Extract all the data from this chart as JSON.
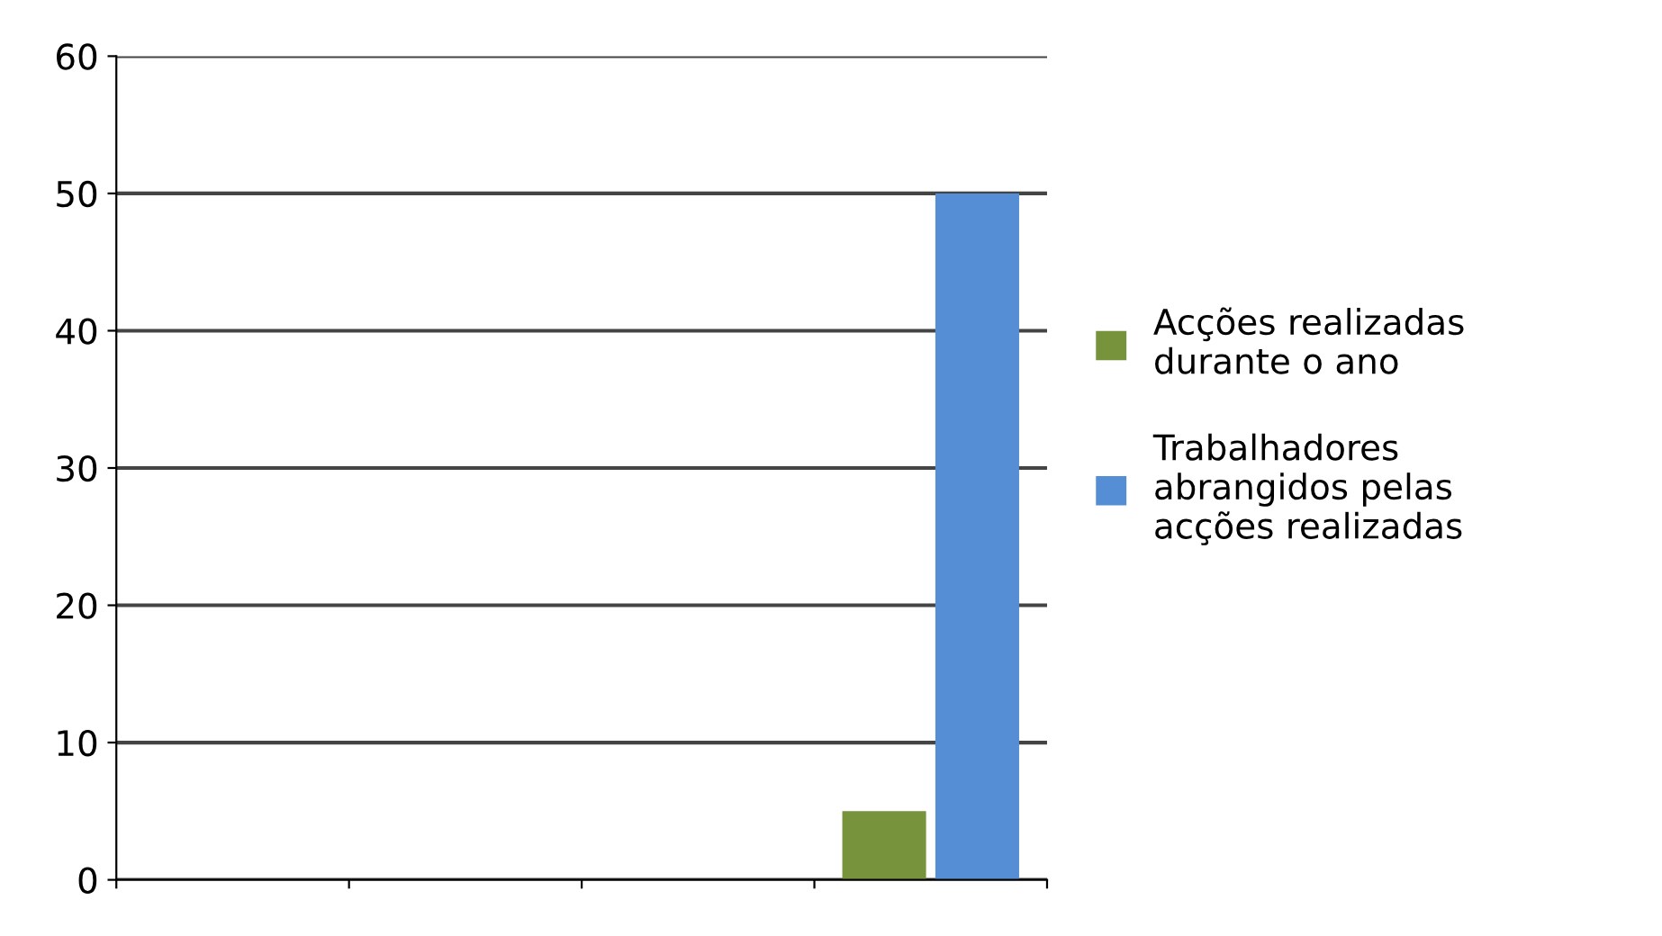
{
  "chart_data": {
    "type": "bar",
    "categories": [
      null,
      null,
      null,
      null
    ],
    "series": [
      {
        "name": "Acções realizadas durante o ano",
        "color": "#77933c",
        "values": [
          null,
          null,
          null,
          5
        ]
      },
      {
        "name": "Trabalhadores abrangidos pelas acções realizadas",
        "color": "#558ed5",
        "values": [
          null,
          null,
          null,
          50
        ]
      }
    ],
    "ylim": [
      0,
      60
    ],
    "yticks": [
      0,
      10,
      20,
      30,
      40,
      50,
      60
    ],
    "grid": "y",
    "legend": "right"
  }
}
